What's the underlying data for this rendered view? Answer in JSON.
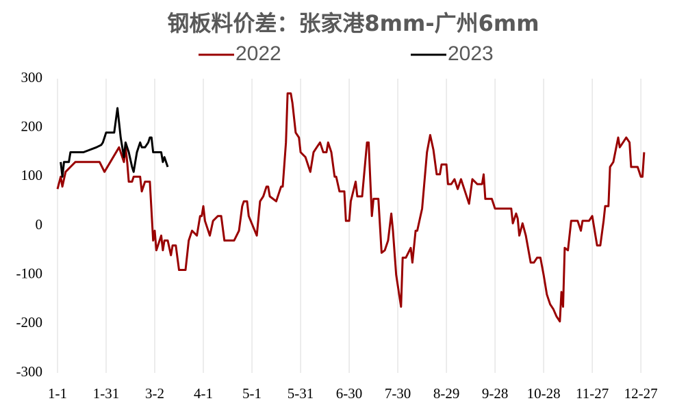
{
  "chart_data": {
    "type": "line",
    "title": "钢板料价差：张家港8mm-广州6mm",
    "xlim": [
      0,
      365
    ],
    "xticks": [
      {
        "value": 0,
        "label": "1-1"
      },
      {
        "value": 30,
        "label": "1-31"
      },
      {
        "value": 60,
        "label": "3-2"
      },
      {
        "value": 90,
        "label": "4-1"
      },
      {
        "value": 120,
        "label": "5-1"
      },
      {
        "value": 150,
        "label": "5-31"
      },
      {
        "value": 180,
        "label": "6-30"
      },
      {
        "value": 210,
        "label": "7-30"
      },
      {
        "value": 240,
        "label": "8-29"
      },
      {
        "value": 270,
        "label": "9-28"
      },
      {
        "value": 300,
        "label": "10-28"
      },
      {
        "value": 330,
        "label": "11-27"
      },
      {
        "value": 360,
        "label": "12-27"
      }
    ],
    "ylim": [
      -300,
      300
    ],
    "yticks": [
      -300,
      -200,
      -100,
      0,
      100,
      200,
      300
    ],
    "grid": true,
    "series": [
      {
        "name": "2022",
        "color": "#990000",
        "x": [
          0,
          2,
          3,
          5,
          8,
          11,
          26,
          29,
          38,
          41,
          42,
          43,
          44,
          46,
          47,
          51,
          52,
          54,
          57,
          59,
          60,
          61,
          64,
          65,
          66,
          68,
          70,
          71,
          73,
          75,
          79,
          81,
          83,
          86,
          88,
          89,
          90,
          91,
          94,
          96,
          99,
          101,
          103,
          109,
          112,
          114,
          115,
          117,
          118,
          123,
          125,
          127,
          129,
          130,
          131,
          135,
          138,
          139,
          141,
          142,
          144,
          145,
          147,
          149,
          150,
          153,
          155,
          156,
          158,
          160,
          162,
          164,
          166,
          167,
          169,
          171,
          172,
          174,
          177,
          178,
          180,
          181,
          184,
          185,
          188,
          191,
          192,
          194,
          195,
          198,
          200,
          202,
          204,
          206,
          207,
          209,
          212,
          213,
          215,
          218,
          219,
          221,
          222,
          224,
          225,
          228,
          230,
          232,
          234,
          236,
          237,
          240,
          241,
          243,
          245,
          247,
          249,
          254,
          256,
          259,
          262,
          263,
          264,
          268,
          270,
          280,
          281,
          283,
          284,
          285,
          287,
          289,
          292,
          294,
          296,
          298,
          300,
          302,
          304,
          306,
          308,
          310,
          311,
          312,
          313,
          315,
          317,
          321,
          323,
          324,
          328,
          330,
          333,
          335,
          337,
          338,
          340,
          341,
          343,
          346,
          347,
          349,
          351,
          353,
          354,
          358,
          360,
          361,
          362
        ],
        "values": [
          75,
          100,
          80,
          110,
          120,
          130,
          130,
          110,
          160,
          130,
          160,
          130,
          90,
          90,
          100,
          100,
          70,
          90,
          90,
          -30,
          -10,
          -50,
          -20,
          -50,
          -30,
          -30,
          -60,
          -40,
          -40,
          -90,
          -90,
          -30,
          -10,
          -20,
          20,
          20,
          40,
          10,
          -20,
          10,
          20,
          20,
          -30,
          -30,
          -10,
          40,
          50,
          50,
          20,
          -20,
          50,
          60,
          80,
          80,
          60,
          50,
          80,
          80,
          170,
          270,
          270,
          250,
          190,
          180,
          150,
          140,
          120,
          110,
          150,
          160,
          170,
          150,
          150,
          170,
          150,
          100,
          100,
          70,
          70,
          10,
          10,
          50,
          90,
          60,
          60,
          170,
          170,
          20,
          55,
          55,
          -55,
          -50,
          -30,
          25,
          -10,
          -100,
          -165,
          -65,
          -65,
          -45,
          -75,
          -10,
          -10,
          20,
          35,
          150,
          185,
          155,
          105,
          105,
          125,
          125,
          85,
          85,
          95,
          75,
          95,
          45,
          95,
          85,
          85,
          105,
          55,
          55,
          35,
          35,
          5,
          25,
          15,
          -20,
          5,
          -20,
          -75,
          -75,
          -65,
          -65,
          -100,
          -140,
          -160,
          -170,
          -185,
          -195,
          -135,
          -165,
          -45,
          -50,
          10,
          10,
          -10,
          10,
          10,
          20,
          -40,
          -40,
          10,
          40,
          40,
          120,
          130,
          180,
          160,
          170,
          180,
          170,
          120,
          120,
          100,
          100,
          150
        ]
      },
      {
        "name": "2023",
        "color": "#000000",
        "x": [
          2,
          3,
          4,
          7,
          8,
          16,
          24,
          27,
          28,
          30,
          35,
          37,
          39,
          41,
          42,
          44,
          46,
          47,
          48,
          49,
          51,
          52,
          54,
          56,
          57,
          58,
          59,
          64,
          65,
          66,
          68
        ],
        "values": [
          130,
          100,
          130,
          130,
          150,
          150,
          160,
          165,
          170,
          190,
          190,
          240,
          180,
          140,
          170,
          150,
          120,
          110,
          130,
          150,
          170,
          160,
          160,
          170,
          180,
          180,
          150,
          150,
          130,
          140,
          120
        ]
      }
    ]
  }
}
